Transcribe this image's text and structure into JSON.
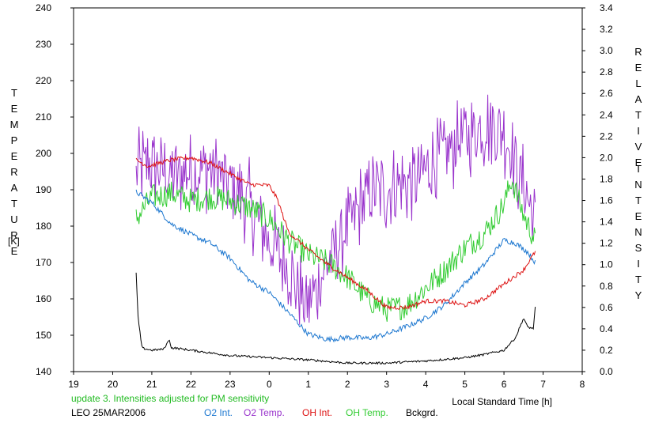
{
  "footer": {
    "note": "update 3. Intensities adjusted for PM sensitivity",
    "note_color": "#22bb22",
    "site_date": "LEO 25MAR2006"
  },
  "left_axis_title": [
    "T",
    "E",
    "M",
    "P",
    "E",
    "R",
    "A",
    "T",
    "U",
    "R",
    "E"
  ],
  "left_axis_unit": "[K]",
  "right_axis_title_1": [
    "R",
    "E",
    "L",
    "A",
    "T",
    "I",
    "V",
    "E"
  ],
  "right_axis_title_2": [
    "I",
    "N",
    "T",
    "E",
    "N",
    "S",
    "I",
    "T",
    "Y"
  ],
  "chart_data": {
    "type": "line",
    "title": "",
    "xlabel": "Local Standard Time [h]",
    "ylabel_left": "TEMPERATURE [K]",
    "ylabel_right": "RELATIVE INTENSITY",
    "x_ticks": [
      19,
      20,
      21,
      22,
      23,
      0,
      1,
      2,
      3,
      4,
      5,
      6,
      7,
      8
    ],
    "x_tick_labels": [
      "19",
      "20",
      "21",
      "22",
      "23",
      "0",
      "1",
      "2",
      "3",
      "4",
      "5",
      "6",
      "7",
      "8"
    ],
    "x_range": [
      19,
      32
    ],
    "y_left_range": [
      140,
      240
    ],
    "y_left_ticks": [
      140,
      150,
      160,
      170,
      180,
      190,
      200,
      210,
      220,
      230,
      240
    ],
    "y_left_tick_labels": [
      "140",
      "150",
      "160",
      "170",
      "180",
      "190",
      "200",
      "210",
      "220",
      "230",
      "240"
    ],
    "y_right_range": [
      0.0,
      3.4
    ],
    "y_right_ticks": [
      0.0,
      0.2,
      0.4,
      0.6,
      0.8,
      1.0,
      1.2,
      1.4,
      1.6,
      1.8,
      2.0,
      2.2,
      2.4,
      2.6,
      2.8,
      3.0,
      3.2,
      3.4
    ],
    "y_right_tick_labels": [
      "0.0",
      "0.2",
      "0.4",
      "0.6",
      "0.8",
      "1.0",
      "1.2",
      "1.4",
      "1.6",
      "1.8",
      "2.0",
      "2.2",
      "2.4",
      "2.6",
      "2.8",
      "3.0",
      "3.2",
      "3.4"
    ],
    "legend_position": "bottom",
    "series": [
      {
        "name": "O2 Int.",
        "color": "#1e78d0",
        "axis": "right",
        "noise": 0.025,
        "x": [
          20.6,
          21.0,
          21.5,
          22.0,
          22.5,
          23.0,
          23.5,
          24.0,
          24.5,
          25.0,
          25.5,
          26.0,
          26.5,
          27.0,
          27.5,
          28.0,
          28.5,
          29.0,
          29.5,
          29.8,
          30.0,
          30.3,
          30.6,
          30.8
        ],
        "y": [
          1.68,
          1.58,
          1.38,
          1.28,
          1.2,
          1.06,
          0.85,
          0.74,
          0.55,
          0.35,
          0.3,
          0.32,
          0.31,
          0.35,
          0.42,
          0.5,
          0.63,
          0.83,
          1.0,
          1.14,
          1.23,
          1.2,
          1.12,
          1.02
        ]
      },
      {
        "name": "O2 Temp.",
        "color": "#9933cc",
        "axis": "left",
        "noise": 5.0,
        "x": [
          20.6,
          21.0,
          21.5,
          22.0,
          22.5,
          23.0,
          23.5,
          24.0,
          24.5,
          25.0,
          25.5,
          26.0,
          26.5,
          27.0,
          27.5,
          28.0,
          28.5,
          29.0,
          29.5,
          29.8,
          30.0,
          30.3,
          30.6,
          30.8
        ],
        "y": [
          195,
          198,
          194,
          195,
          196,
          192,
          186,
          176,
          168,
          158,
          170,
          180,
          188,
          190,
          192,
          195,
          200,
          205,
          207,
          208,
          206,
          198,
          188,
          180
        ]
      },
      {
        "name": "OH Int.",
        "color": "#dd1111",
        "axis": "right",
        "noise": 0.02,
        "x": [
          20.6,
          20.9,
          21.5,
          22.0,
          22.5,
          23.0,
          23.5,
          24.0,
          24.2,
          24.5,
          25.0,
          25.5,
          26.0,
          26.5,
          27.0,
          27.5,
          28.0,
          28.5,
          29.0,
          29.5,
          30.0,
          30.5,
          30.8
        ],
        "y": [
          1.98,
          1.92,
          1.98,
          2.0,
          1.95,
          1.85,
          1.75,
          1.74,
          1.62,
          1.3,
          1.14,
          1.0,
          0.88,
          0.76,
          0.6,
          0.6,
          0.66,
          0.66,
          0.62,
          0.68,
          0.82,
          0.95,
          1.12
        ]
      },
      {
        "name": "OH Temp.",
        "color": "#33cc33",
        "axis": "left",
        "noise": 3.5,
        "x": [
          20.6,
          21.0,
          21.5,
          22.0,
          22.5,
          23.0,
          23.5,
          24.0,
          24.5,
          25.0,
          25.5,
          26.0,
          26.5,
          27.0,
          27.5,
          28.0,
          28.5,
          29.0,
          29.5,
          30.0,
          30.2,
          30.5,
          30.8
        ],
        "y": [
          182,
          188,
          189,
          187,
          188,
          187,
          185,
          182,
          176,
          172,
          170,
          166,
          160,
          157,
          158,
          163,
          168,
          174,
          178,
          186,
          193,
          183,
          176
        ]
      },
      {
        "name": "Bckgrd.",
        "color": "#000000",
        "axis": "right",
        "noise": 0.01,
        "x": [
          20.6,
          20.65,
          20.75,
          21.0,
          21.3,
          21.45,
          21.5,
          21.6,
          22.0,
          23.0,
          24.0,
          25.0,
          26.0,
          27.0,
          28.0,
          29.0,
          29.5,
          30.0,
          30.3,
          30.5,
          30.6,
          30.75,
          30.8
        ],
        "y": [
          0.92,
          0.5,
          0.22,
          0.2,
          0.21,
          0.3,
          0.22,
          0.22,
          0.2,
          0.15,
          0.13,
          0.11,
          0.08,
          0.08,
          0.1,
          0.13,
          0.16,
          0.2,
          0.32,
          0.5,
          0.42,
          0.4,
          0.6
        ]
      }
    ]
  }
}
